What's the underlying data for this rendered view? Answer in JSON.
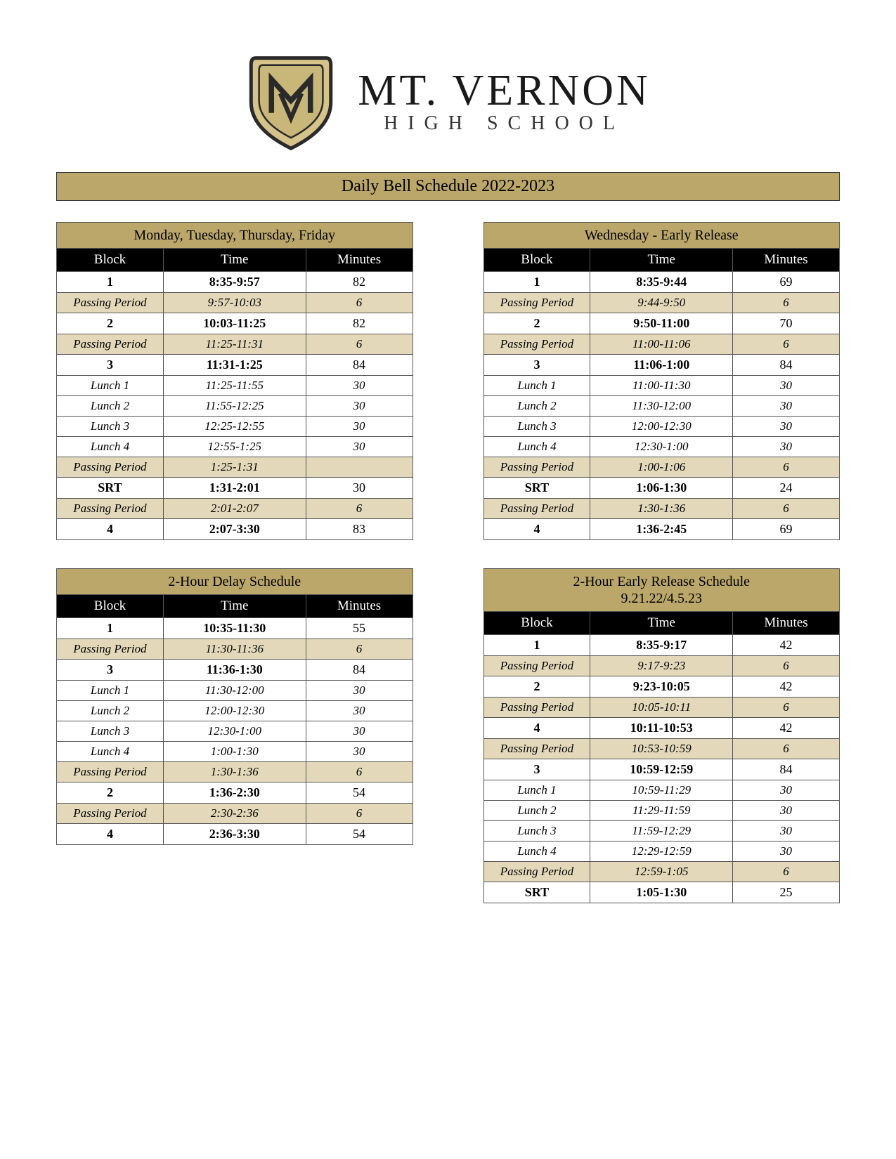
{
  "school": {
    "main": "MT. VERNON",
    "sub": "HIGH SCHOOL"
  },
  "page_title": "Daily Bell Schedule 2022-2023",
  "colors": {
    "gold": "#bba76a",
    "gold_light": "#e3d9ba",
    "black": "#000000",
    "white": "#ffffff",
    "border": "#555555"
  },
  "columns": [
    "Block",
    "Time",
    "Minutes"
  ],
  "schedules": [
    {
      "title": "Monday, Tuesday, Thursday, Friday",
      "rows": [
        {
          "type": "normal",
          "block": "1",
          "time": "8:35-9:57",
          "min": "82"
        },
        {
          "type": "passing",
          "block": "Passing Period",
          "time": "9:57-10:03",
          "min": "6"
        },
        {
          "type": "normal",
          "block": "2",
          "time": "10:03-11:25",
          "min": "82"
        },
        {
          "type": "passing",
          "block": "Passing Period",
          "time": "11:25-11:31",
          "min": "6"
        },
        {
          "type": "normal",
          "block": "3",
          "time": "11:31-1:25",
          "min": "84"
        },
        {
          "type": "lunch",
          "block": "Lunch 1",
          "time": "11:25-11:55",
          "min": "30"
        },
        {
          "type": "lunch",
          "block": "Lunch 2",
          "time": "11:55-12:25",
          "min": "30"
        },
        {
          "type": "lunch",
          "block": "Lunch 3",
          "time": "12:25-12:55",
          "min": "30"
        },
        {
          "type": "lunch",
          "block": "Lunch 4",
          "time": "12:55-1:25",
          "min": "30"
        },
        {
          "type": "passing",
          "block": "Passing Period",
          "time": "1:25-1:31",
          "min": ""
        },
        {
          "type": "normal",
          "block": "SRT",
          "time": "1:31-2:01",
          "min": "30"
        },
        {
          "type": "passing",
          "block": "Passing Period",
          "time": "2:01-2:07",
          "min": "6"
        },
        {
          "type": "normal",
          "block": "4",
          "time": "2:07-3:30",
          "min": "83"
        }
      ]
    },
    {
      "title": "Wednesday - Early Release",
      "rows": [
        {
          "type": "normal",
          "block": "1",
          "time": "8:35-9:44",
          "min": "69"
        },
        {
          "type": "passing",
          "block": "Passing Period",
          "time": "9:44-9:50",
          "min": "6"
        },
        {
          "type": "normal",
          "block": "2",
          "time": "9:50-11:00",
          "min": "70"
        },
        {
          "type": "passing",
          "block": "Passing Period",
          "time": "11:00-11:06",
          "min": "6"
        },
        {
          "type": "normal",
          "block": "3",
          "time": "11:06-1:00",
          "min": "84"
        },
        {
          "type": "lunch",
          "block": "Lunch 1",
          "time": "11:00-11:30",
          "min": "30"
        },
        {
          "type": "lunch",
          "block": "Lunch 2",
          "time": "11:30-12:00",
          "min": "30"
        },
        {
          "type": "lunch",
          "block": "Lunch 3",
          "time": "12:00-12:30",
          "min": "30"
        },
        {
          "type": "lunch",
          "block": "Lunch 4",
          "time": "12:30-1:00",
          "min": "30"
        },
        {
          "type": "passing",
          "block": "Passing Period",
          "time": "1:00-1:06",
          "min": "6"
        },
        {
          "type": "normal",
          "block": "SRT",
          "time": "1:06-1:30",
          "min": "24"
        },
        {
          "type": "passing",
          "block": "Passing Period",
          "time": "1:30-1:36",
          "min": "6"
        },
        {
          "type": "normal",
          "block": "4",
          "time": "1:36-2:45",
          "min": "69"
        }
      ]
    },
    {
      "title": "2-Hour Delay Schedule",
      "rows": [
        {
          "type": "normal",
          "block": "1",
          "time": "10:35-11:30",
          "min": "55"
        },
        {
          "type": "passing",
          "block": "Passing Period",
          "time": "11:30-11:36",
          "min": "6"
        },
        {
          "type": "normal",
          "block": "3",
          "time": "11:36-1:30",
          "min": "84"
        },
        {
          "type": "lunch",
          "block": "Lunch 1",
          "time": "11:30-12:00",
          "min": "30"
        },
        {
          "type": "lunch",
          "block": "Lunch 2",
          "time": "12:00-12:30",
          "min": "30"
        },
        {
          "type": "lunch",
          "block": "Lunch 3",
          "time": "12:30-1:00",
          "min": "30"
        },
        {
          "type": "lunch",
          "block": "Lunch 4",
          "time": "1:00-1:30",
          "min": "30"
        },
        {
          "type": "passing",
          "block": "Passing Period",
          "time": "1:30-1:36",
          "min": "6"
        },
        {
          "type": "normal",
          "block": "2",
          "time": "1:36-2:30",
          "min": "54"
        },
        {
          "type": "passing",
          "block": "Passing Period",
          "time": "2:30-2:36",
          "min": "6"
        },
        {
          "type": "normal",
          "block": "4",
          "time": "2:36-3:30",
          "min": "54"
        }
      ]
    },
    {
      "title": "2-Hour Early Release Schedule\n9.21.22/4.5.23",
      "rows": [
        {
          "type": "normal",
          "block": "1",
          "time": "8:35-9:17",
          "min": "42"
        },
        {
          "type": "passing",
          "block": "Passing Period",
          "time": "9:17-9:23",
          "min": "6"
        },
        {
          "type": "normal",
          "block": "2",
          "time": "9:23-10:05",
          "min": "42"
        },
        {
          "type": "passing",
          "block": "Passing Period",
          "time": "10:05-10:11",
          "min": "6"
        },
        {
          "type": "normal",
          "block": "4",
          "time": "10:11-10:53",
          "min": "42"
        },
        {
          "type": "passing",
          "block": "Passing Period",
          "time": "10:53-10:59",
          "min": "6"
        },
        {
          "type": "normal",
          "block": "3",
          "time": "10:59-12:59",
          "min": "84"
        },
        {
          "type": "lunch",
          "block": "Lunch 1",
          "time": "10:59-11:29",
          "min": "30"
        },
        {
          "type": "lunch",
          "block": "Lunch 2",
          "time": "11:29-11:59",
          "min": "30"
        },
        {
          "type": "lunch",
          "block": "Lunch 3",
          "time": "11:59-12:29",
          "min": "30"
        },
        {
          "type": "lunch",
          "block": "Lunch 4",
          "time": "12:29-12:59",
          "min": "30"
        },
        {
          "type": "passing",
          "block": "Passing Period",
          "time": "12:59-1:05",
          "min": "6"
        },
        {
          "type": "normal",
          "block": "SRT",
          "time": "1:05-1:30",
          "min": "25"
        }
      ]
    }
  ]
}
